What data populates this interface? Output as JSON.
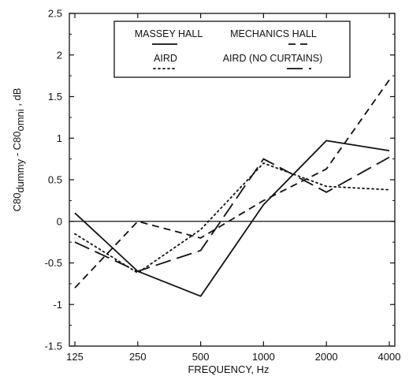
{
  "chart_data": {
    "type": "line",
    "title": "",
    "xlabel": "FREQUENCY, Hz",
    "ylabel": {
      "parts": [
        "C80",
        "dummy",
        " - C80",
        "omni",
        " , dB"
      ]
    },
    "x_scale": "log2",
    "categories": [
      "125",
      "250",
      "500",
      "1000",
      "2000",
      "4000"
    ],
    "x": [
      125,
      250,
      500,
      1000,
      2000,
      4000
    ],
    "ylim": [
      -1.5,
      2.5
    ],
    "yticks": [
      "-1.5",
      "-1",
      "-0.5",
      "0",
      "0.5",
      "1",
      "1.5",
      "2",
      "2.5"
    ],
    "ytick_values": [
      -1.5,
      -1,
      -0.5,
      0,
      0.5,
      1,
      1.5,
      2,
      2.5
    ],
    "zero_line": true,
    "grid": false,
    "legend_position": "top-center",
    "series": [
      {
        "name": "MASSEY HALL",
        "style": "solid",
        "values": [
          0.1,
          -0.6,
          -0.9,
          0.2,
          0.97,
          0.85
        ]
      },
      {
        "name": "MECHANICS HALL",
        "style": "short-dash",
        "values": [
          -0.8,
          0.0,
          -0.2,
          0.25,
          0.63,
          1.7
        ]
      },
      {
        "name": "AIRD",
        "style": "dotted",
        "values": [
          -0.15,
          -0.62,
          -0.1,
          0.7,
          0.42,
          0.38
        ]
      },
      {
        "name": "AIRD (NO CURTAINS)",
        "style": "long-dash",
        "values": [
          -0.25,
          -0.6,
          -0.35,
          0.75,
          0.35,
          0.77
        ]
      }
    ]
  }
}
